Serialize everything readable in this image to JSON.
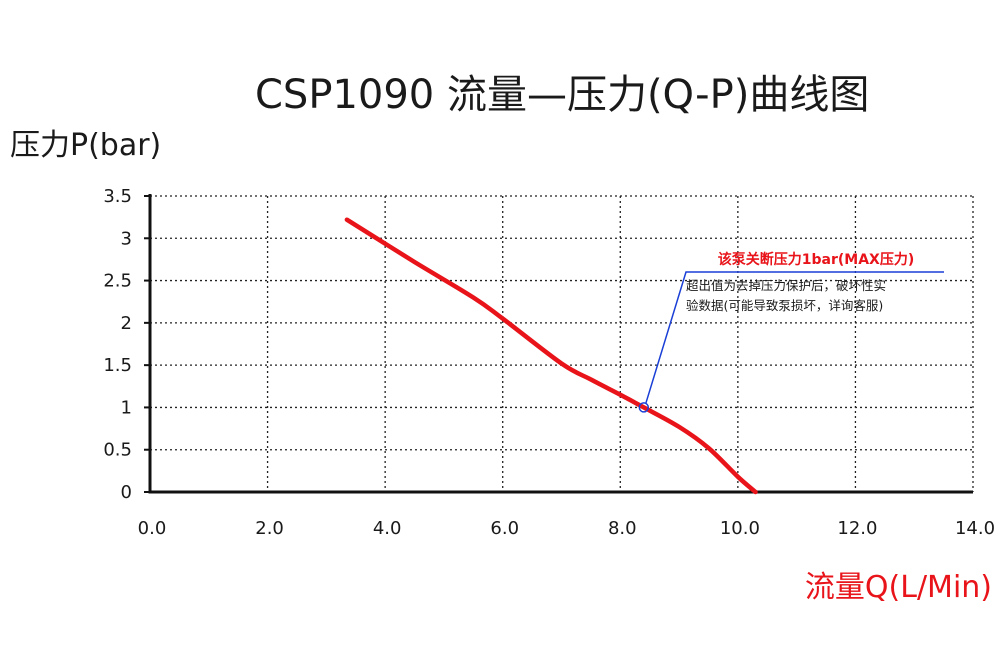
{
  "page": {
    "title": "CSP1090 流量—压力(Q-P)曲线图"
  },
  "chart_data": {
    "type": "line",
    "title": "CSP1090 流量—压力(Q-P)曲线图",
    "xlabel": "流量Q(L/Min)",
    "ylabel": "压力P(bar)",
    "xlim": [
      0,
      14
    ],
    "ylim": [
      0,
      3.5
    ],
    "x_ticks": [
      "0.0",
      "2.0",
      "4.0",
      "6.0",
      "8.0",
      "10.0",
      "12.0",
      "14.0"
    ],
    "y_ticks": [
      "0",
      "0.5",
      "1",
      "1.5",
      "2",
      "2.5",
      "3",
      "3.5"
    ],
    "grid": true,
    "series": [
      {
        "color": "#e8141a",
        "x": [
          3.35,
          4.5,
          5.5,
          6.0,
          7.0,
          7.5,
          8.0,
          8.4,
          9.0,
          9.5,
          10.0,
          10.3
        ],
        "y": [
          3.22,
          2.72,
          2.3,
          2.05,
          1.52,
          1.33,
          1.15,
          1.0,
          0.77,
          0.52,
          0.18,
          0.0
        ]
      }
    ],
    "annotation": {
      "title": "该泵关断压力1bar(MAX压力)",
      "lines": [
        "超出值为去掉压力保护后，破坏性实",
        "验数据(可能导致泵损坏，详询客服)"
      ],
      "point": {
        "x": 8.4,
        "y": 1.0
      },
      "color": "#e8141a",
      "leader_color": "#1a3fd6"
    }
  }
}
